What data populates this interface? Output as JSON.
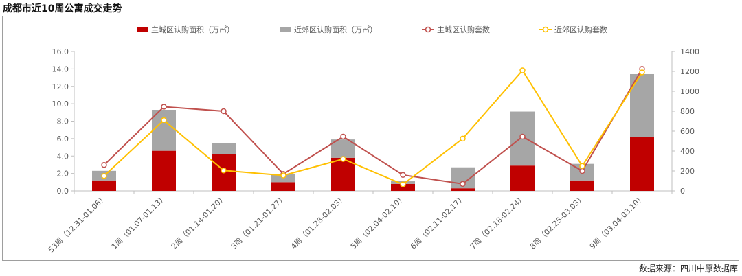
{
  "title": "成都市近10周公寓成交走势",
  "source": "数据来源：四川中原数据库",
  "colors": {
    "main_bar": "#c00000",
    "suburb_bar": "#a6a6a6",
    "main_line": "#c0504d",
    "suburb_line": "#ffc000",
    "axis": "#bfbfbf",
    "text": "#595959"
  },
  "chart_data": {
    "type": "bar",
    "stacked": true,
    "categories": [
      "53周（12.31-01.06）",
      "1周（01.07-01.13）",
      "2周（01.14-01.20）",
      "3周（01.21-01.27）",
      "4周（01.28-02.03）",
      "5周（02.04-02.10）",
      "6周（02.11-02.17）",
      "7周（02.18-02.24）",
      "8周（02.25-03.03）",
      "9周（03.04-03.10）"
    ],
    "series": [
      {
        "name": "主城区认购面积（万㎡）",
        "type": "bar",
        "axis": "left",
        "values": [
          1.2,
          4.6,
          4.2,
          1.0,
          3.8,
          0.8,
          0.3,
          2.9,
          1.2,
          6.2
        ]
      },
      {
        "name": "近郊区认购面积（万㎡）",
        "type": "bar",
        "axis": "left",
        "values": [
          1.1,
          4.7,
          1.3,
          0.9,
          2.1,
          0.3,
          2.4,
          6.2,
          1.9,
          7.2
        ]
      },
      {
        "name": "主城区认购套数",
        "type": "line",
        "axis": "right",
        "values": [
          260,
          845,
          800,
          170,
          545,
          160,
          70,
          545,
          200,
          1225
        ]
      },
      {
        "name": "近郊区认购套数",
        "type": "line",
        "axis": "right",
        "values": [
          150,
          710,
          205,
          155,
          320,
          65,
          525,
          1210,
          250,
          1190
        ]
      }
    ],
    "y_left": {
      "min": 0,
      "max": 16,
      "step": 2,
      "ticks": [
        "0.0",
        "2.0",
        "4.0",
        "6.0",
        "8.0",
        "10.0",
        "12.0",
        "14.0",
        "16.0"
      ]
    },
    "y_right": {
      "min": 0,
      "max": 1400,
      "step": 200,
      "ticks": [
        "0",
        "200",
        "400",
        "600",
        "800",
        "1000",
        "1200",
        "1400"
      ]
    },
    "grid": false,
    "legend_position": "top"
  }
}
